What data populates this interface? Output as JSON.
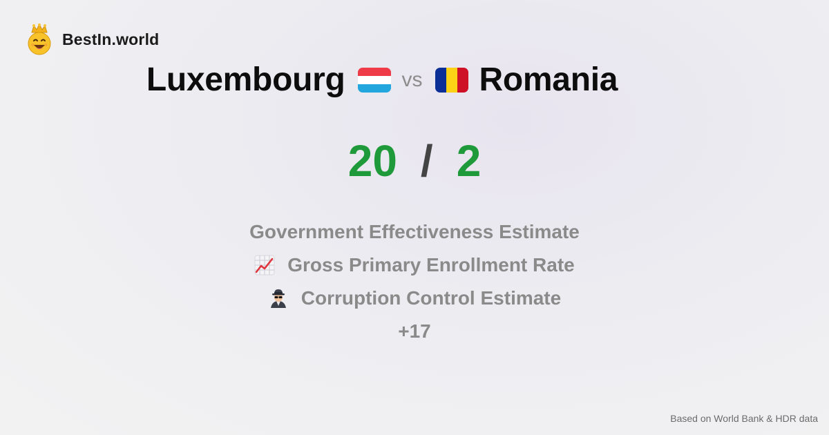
{
  "brand": {
    "name": "BestIn.world",
    "logo_icon": "crowned-smiley-icon"
  },
  "comparison": {
    "left_country": "Luxembourg",
    "left_flag": "luxembourg-flag-icon",
    "vs_label": "vs",
    "right_country": "Romania",
    "right_flag": "romania-flag-icon"
  },
  "score": {
    "left": "20",
    "separator": "/",
    "right": "2",
    "color": "#1f9a3a"
  },
  "metrics": [
    {
      "icon": "",
      "label": "Government Effectiveness Estimate"
    },
    {
      "icon": "chart-increasing-icon",
      "label": "Gross Primary Enrollment Rate"
    },
    {
      "icon": "detective-icon",
      "label": "Corruption Control Estimate"
    }
  ],
  "more_count": "+17",
  "footer": {
    "source_note": "Based on World Bank & HDR data"
  }
}
